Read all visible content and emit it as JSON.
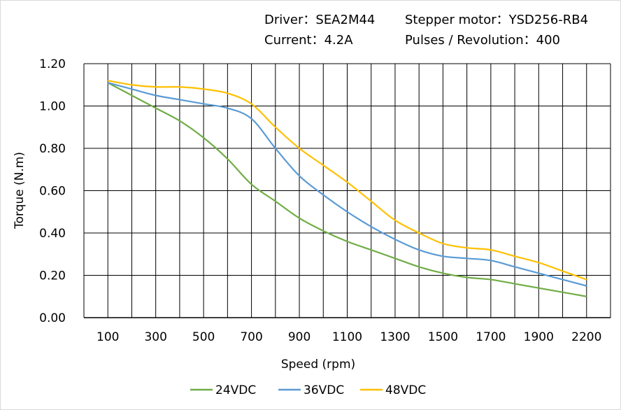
{
  "header": {
    "driver": "Driver：SEA2M44",
    "motor": "Stepper  motor：YSD256-RB4",
    "current": "Current：4.2A",
    "pulses": "Pulses / Revolution：400"
  },
  "chart_data": {
    "type": "line",
    "xlabel": "Speed  (rpm)",
    "ylabel": "Torque (N.m)",
    "ylim": [
      0,
      1.2
    ],
    "yticks": [
      "0.00",
      "0.20",
      "0.40",
      "0.60",
      "0.80",
      "1.00",
      "1.20"
    ],
    "categories": [
      100,
      200,
      300,
      400,
      500,
      600,
      700,
      800,
      900,
      1000,
      1100,
      1200,
      1300,
      1400,
      1500,
      1600,
      1700,
      1800,
      1900,
      2000,
      2200
    ],
    "xtick_labels": [
      "100",
      "300",
      "500",
      "700",
      "900",
      "1100",
      "1300",
      "1500",
      "1700",
      "1900",
      "2200"
    ],
    "grid": true,
    "legend": "bottom",
    "series": [
      {
        "name": "24VDC",
        "color": "#70AD47",
        "values": [
          1.11,
          1.05,
          0.99,
          0.93,
          0.85,
          0.75,
          0.63,
          0.55,
          0.47,
          0.41,
          0.36,
          0.32,
          0.28,
          0.24,
          0.21,
          0.19,
          0.18,
          0.16,
          0.14,
          0.12,
          0.1
        ]
      },
      {
        "name": "36VDC",
        "color": "#5B9BD5",
        "values": [
          1.11,
          1.08,
          1.05,
          1.03,
          1.01,
          0.99,
          0.94,
          0.8,
          0.67,
          0.58,
          0.5,
          0.43,
          0.37,
          0.32,
          0.29,
          0.28,
          0.27,
          0.24,
          0.21,
          0.18,
          0.15
        ]
      },
      {
        "name": "48VDC",
        "color": "#FFC000",
        "values": [
          1.12,
          1.1,
          1.09,
          1.09,
          1.08,
          1.06,
          1.01,
          0.9,
          0.8,
          0.72,
          0.64,
          0.55,
          0.46,
          0.4,
          0.35,
          0.33,
          0.32,
          0.29,
          0.26,
          0.22,
          0.18
        ]
      }
    ]
  }
}
